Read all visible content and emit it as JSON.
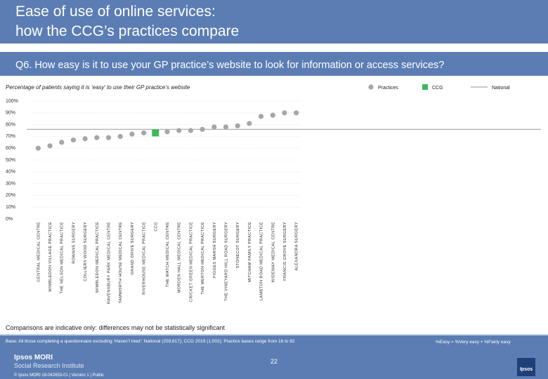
{
  "header": {
    "title_line1": "Ease of use of online services:",
    "title_line2": "how the CCG’s practices compare"
  },
  "question": "Q6. How easy is it to use your GP practice’s website to look for information or access services?",
  "chart_data": {
    "type": "dot",
    "subtitle": "Percentage of patients saying it is ‘easy’ to use their GP practice’s website",
    "categories": [
      "CENTRAL MEDICAL CENTRE",
      "WIMBLEDON VILLAGE PRACTICE",
      "THE NELSON MEDICAL PRACTICE",
      "ROWANS SURGERY",
      "COLLIERS WOOD SURGERY",
      "WIMBLEDON MEDICAL PRACTICE",
      "RAVENSBURY PARK MEDICAL CENTRE",
      "TAMWORTH HOUSE MEDICAL CENTRE",
      "GRAND DRIVE SURGERY",
      "RIVERHOUSE MEDICAL PRACTICE",
      "CCG",
      "THE WATCH MEDICAL CENTRE",
      "MORDEN HALL MEDICAL CENTRE",
      "CRICKET GREEN MEDICAL PRACTICE",
      "THE MERTON MEDICAL PRACTICE",
      "FIGGES MARSH SURGERY",
      "THE VINEYARD HILL ROAD SURGERY",
      "STONECOT SURGERY",
      "MITCHAM FAMILY PRACTICE",
      "LAMBTON ROAD MEDICAL PRACTICE",
      "WIDEWAY MEDICAL CENTRE",
      "FRANCIS GROVE SURGERY",
      "ALEXANDRA SURGERY"
    ],
    "series": [
      {
        "name": "Practices",
        "color": "#a6a6a6",
        "values": [
          60,
          62,
          65,
          67,
          68,
          69,
          69,
          70,
          72,
          73,
          null,
          74,
          75,
          75,
          76,
          78,
          78,
          79,
          81,
          87,
          88,
          90,
          90
        ]
      },
      {
        "name": "CCG",
        "color": "#3cb85c",
        "values": [
          null,
          null,
          null,
          null,
          null,
          null,
          null,
          null,
          null,
          null,
          73,
          null,
          null,
          null,
          null,
          null,
          null,
          null,
          null,
          null,
          null,
          null,
          null
        ]
      }
    ],
    "reference": {
      "name": "National",
      "color": "#a6a6a6",
      "value": 76
    },
    "ylim": [
      0,
      100
    ],
    "yticks": [
      {
        "value": 0,
        "label": "0%"
      },
      {
        "value": 10,
        "label": "10%"
      },
      {
        "value": 20,
        "label": "20%"
      },
      {
        "value": 30,
        "label": "30%"
      },
      {
        "value": 40,
        "label": "40%"
      },
      {
        "value": 50,
        "label": "50%"
      },
      {
        "value": 60,
        "label": "60%"
      },
      {
        "value": 70,
        "label": "70%"
      },
      {
        "value": 80,
        "label": "80%"
      },
      {
        "value": 90,
        "label": "90%"
      },
      {
        "value": 100,
        "label": "100%"
      }
    ],
    "grid": true
  },
  "footer": {
    "comparison_note": "Comparisons are indicative only: differences may not be statistically significant",
    "base": "Base: All those completing a questionnaire excluding ‘Haven’t tried’: National (259,817); CCG 2019 (1,002); Practice bases range from 16 to 82",
    "definition": "%Easy = %Very easy + %Fairly easy",
    "brand": "Ipsos MORI",
    "brand_sub": "Social Research Institute",
    "page": "22",
    "copyright": "© Ipsos MORI     18-042653-01 | Version 1 | Public",
    "logo": "Ipsos"
  }
}
